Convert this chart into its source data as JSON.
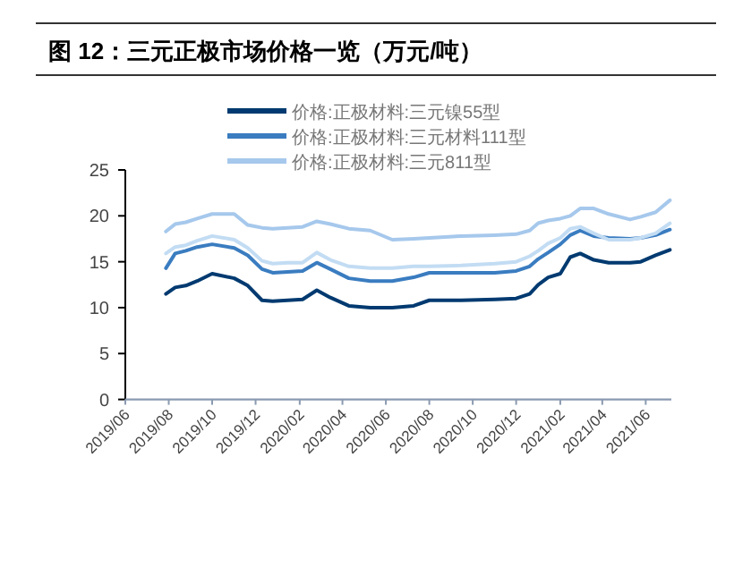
{
  "chart_data": {
    "type": "line",
    "title": "图 12：三元正极市场价格一览（万元/吨）",
    "x": [
      "2019-07-28",
      "2019-08-10",
      "2019-08-25",
      "2019-09-10",
      "2019-10-01",
      "2019-11-01",
      "2019-11-20",
      "2019-12-10",
      "2019-12-25",
      "2020-01-15",
      "2020-02-05",
      "2020-02-25",
      "2020-03-15",
      "2020-04-10",
      "2020-05-10",
      "2020-06-10",
      "2020-07-10",
      "2020-08-01",
      "2020-09-15",
      "2020-11-01",
      "2020-12-01",
      "2020-12-20",
      "2021-01-01",
      "2021-01-15",
      "2021-02-01",
      "2021-02-15",
      "2021-03-01",
      "2021-03-20",
      "2021-04-10",
      "2021-05-10",
      "2021-05-25",
      "2021-06-15",
      "2021-07-05"
    ],
    "series": [
      {
        "name": "价格:正极材料:三元镍55型",
        "color": "#003a70",
        "values": [
          11.5,
          12.2,
          12.4,
          12.9,
          13.7,
          13.2,
          12.4,
          10.8,
          10.7,
          10.8,
          10.9,
          11.9,
          11.1,
          10.2,
          10.0,
          10.0,
          10.2,
          10.8,
          10.8,
          10.9,
          11.0,
          11.5,
          12.5,
          13.3,
          13.7,
          15.5,
          15.9,
          15.2,
          14.9,
          14.9,
          15.0,
          15.7,
          16.3
        ]
      },
      {
        "name": "价格:正极材料:三元材料111型",
        "color": "#3a7cc0",
        "values": [
          14.3,
          15.9,
          16.2,
          16.6,
          16.9,
          16.5,
          15.7,
          14.2,
          13.8,
          13.9,
          14.0,
          14.9,
          14.2,
          13.2,
          12.9,
          12.9,
          13.3,
          13.8,
          13.8,
          13.8,
          14.0,
          14.5,
          15.3,
          16.0,
          16.9,
          17.9,
          18.4,
          17.8,
          17.6,
          17.5,
          17.6,
          17.9,
          18.5
        ]
      },
      {
        "name": "价格:正极材料:三元811型",
        "color": "#a6c8ec",
        "values": [
          18.3,
          19.1,
          19.3,
          19.7,
          20.2,
          20.2,
          19.0,
          18.7,
          18.6,
          18.7,
          18.8,
          19.4,
          19.1,
          18.6,
          18.4,
          17.4,
          17.5,
          17.6,
          17.8,
          17.9,
          18.0,
          18.4,
          19.2,
          19.5,
          19.7,
          20.0,
          20.8,
          20.8,
          20.2,
          19.6,
          19.9,
          20.4,
          21.7
        ]
      },
      {
        "color": "#c2dcf3",
        "values": [
          15.9,
          16.6,
          16.8,
          17.3,
          17.8,
          17.4,
          16.5,
          15.1,
          14.8,
          14.9,
          14.9,
          16.0,
          15.2,
          14.5,
          14.3,
          14.3,
          14.5,
          14.5,
          14.6,
          14.8,
          15.0,
          15.6,
          16.2,
          17.0,
          17.6,
          18.6,
          18.8,
          18.1,
          17.4,
          17.4,
          17.6,
          18.1,
          19.2
        ]
      }
    ],
    "xlim": [
      "2019-06-01",
      "2021-07-07"
    ],
    "xticks": [
      {
        "value": "2019-06",
        "label": "2019/06"
      },
      {
        "value": "2019-08",
        "label": "2019/08"
      },
      {
        "value": "2019-10",
        "label": "2019/10"
      },
      {
        "value": "2019-12",
        "label": "2019/12"
      },
      {
        "value": "2020-02",
        "label": "2020/02"
      },
      {
        "value": "2020-04",
        "label": "2020/04"
      },
      {
        "value": "2020-06",
        "label": "2020/06"
      },
      {
        "value": "2020-08",
        "label": "2020/08"
      },
      {
        "value": "2020-10",
        "label": "2020/10"
      },
      {
        "value": "2020-12",
        "label": "2020/12"
      },
      {
        "value": "2021-02",
        "label": "2021/02"
      },
      {
        "value": "2021-04",
        "label": "2021/04"
      },
      {
        "value": "2021-06",
        "label": "2021/06"
      }
    ],
    "ylim": [
      0,
      25
    ],
    "yticks": [
      0,
      5,
      10,
      15,
      20,
      25
    ],
    "grid": false,
    "legend": "top",
    "marker": "none",
    "line_style": "solid"
  }
}
